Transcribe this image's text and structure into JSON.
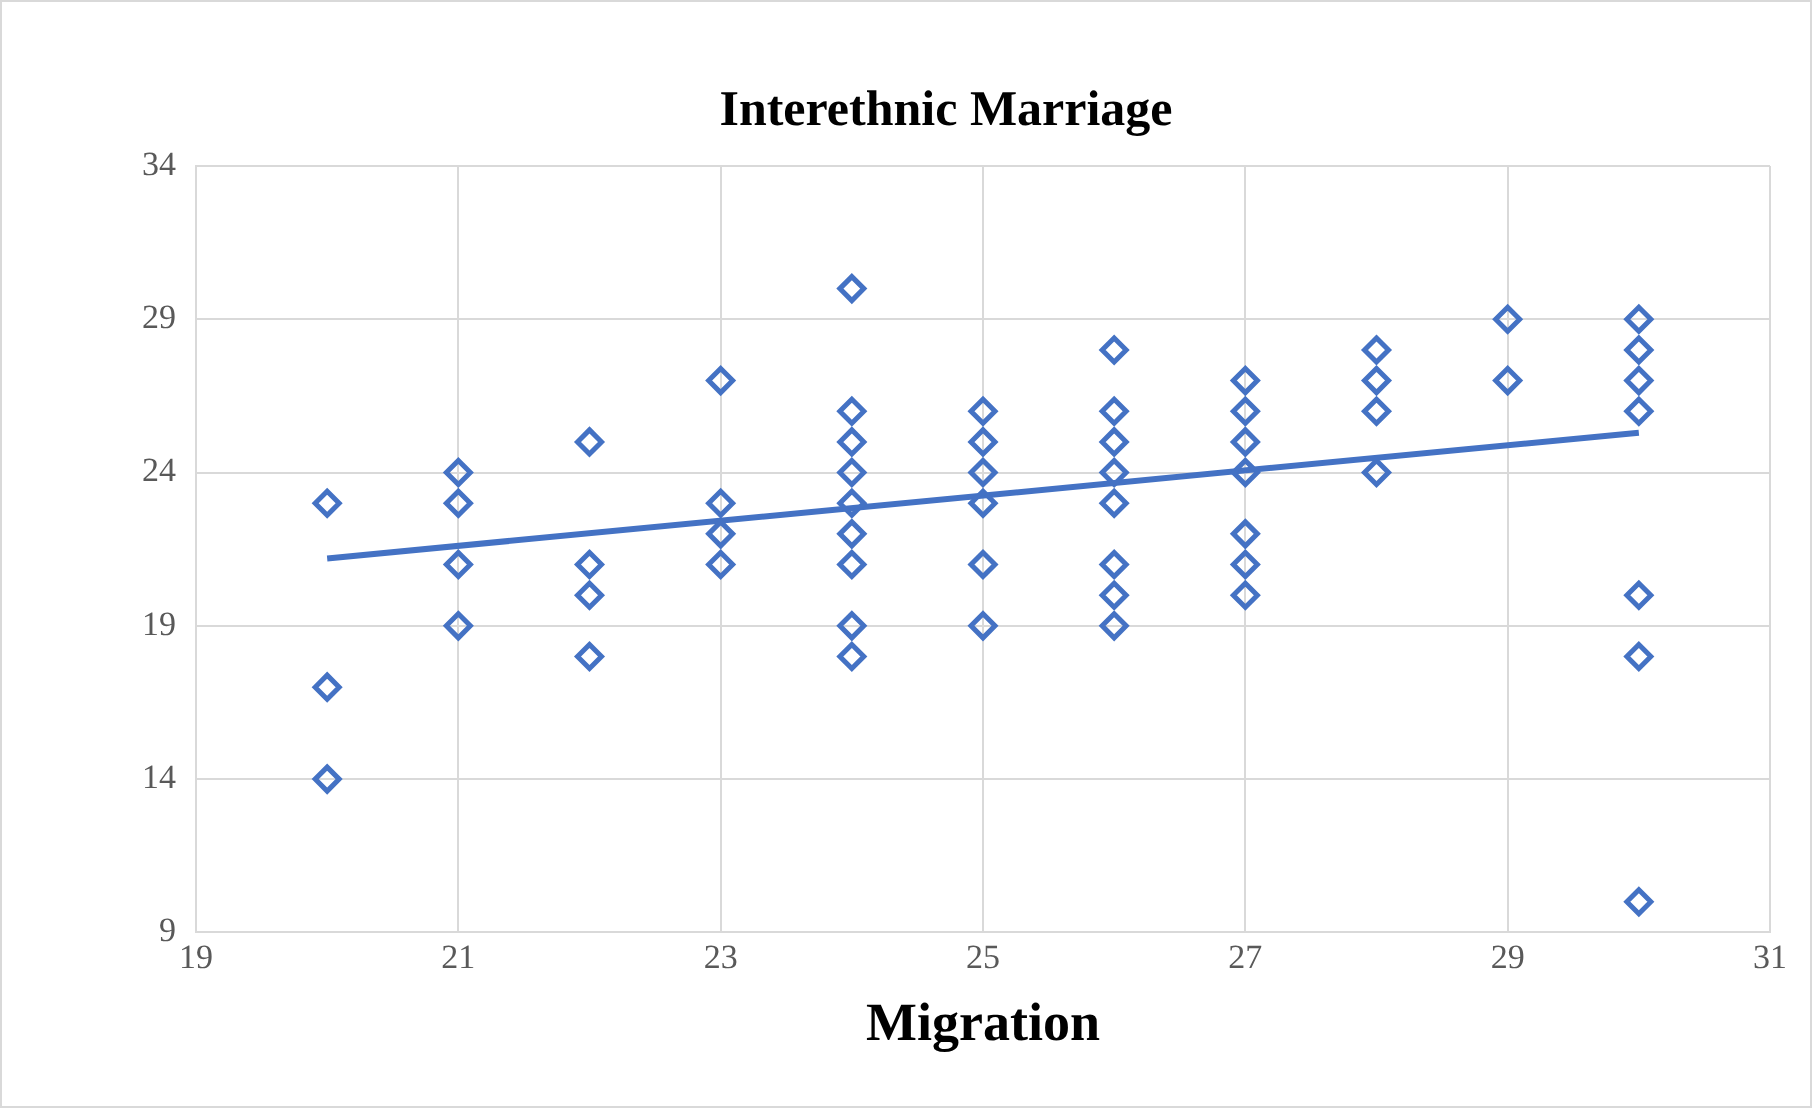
{
  "chart_data": {
    "type": "scatter",
    "title": "Interethnic Marriage",
    "xlabel": "Migration",
    "xlim": [
      19,
      31
    ],
    "xticks": [
      19,
      21,
      23,
      25,
      27,
      29,
      31
    ],
    "ylim": [
      9,
      34
    ],
    "yticks": [
      9,
      14,
      19,
      24,
      29,
      34
    ],
    "grid": true,
    "legend": false,
    "marker": "diamond",
    "series": [
      {
        "type": "scatter",
        "color": "#4472c4",
        "x": [
          20,
          20,
          20,
          21,
          21,
          21,
          21,
          22,
          22,
          22,
          22,
          23,
          23,
          23,
          23,
          24,
          24,
          24,
          24,
          24,
          24,
          24,
          24,
          24,
          25,
          25,
          25,
          25,
          25,
          25,
          26,
          26,
          26,
          26,
          26,
          26,
          26,
          26,
          27,
          27,
          27,
          27,
          27,
          27,
          27,
          28,
          28,
          28,
          28,
          29,
          29,
          30,
          30,
          30,
          30,
          30,
          30,
          30
        ],
        "values": [
          23,
          17,
          14,
          24,
          23,
          21,
          19,
          25,
          21,
          20,
          18,
          27,
          23,
          22,
          21,
          30,
          26,
          25,
          24,
          23,
          22,
          21,
          19,
          18,
          26,
          25,
          24,
          23,
          21,
          19,
          28,
          26,
          25,
          24,
          23,
          21,
          20,
          19,
          27,
          26,
          25,
          24,
          22,
          21,
          20,
          28,
          27,
          26,
          24,
          29,
          27,
          29,
          28,
          27,
          26,
          20,
          18,
          10
        ]
      },
      {
        "type": "line",
        "color": "#4472c4",
        "marker": "none",
        "x": [
          20,
          30
        ],
        "values": [
          21.2,
          25.3
        ]
      }
    ]
  }
}
